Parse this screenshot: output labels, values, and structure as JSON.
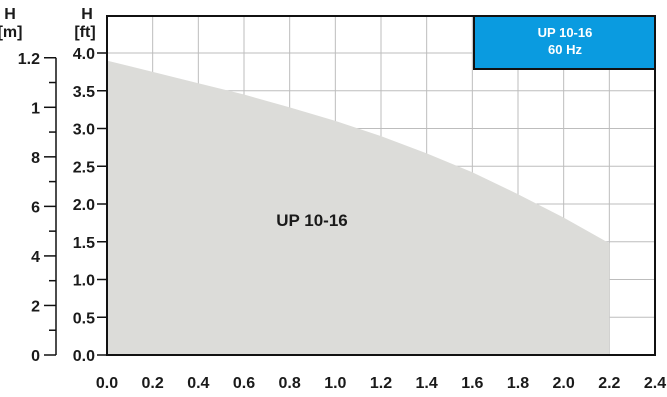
{
  "chart_data": {
    "type": "area",
    "x_ticks": [
      "0.0",
      "0.2",
      "0.4",
      "0.6",
      "0.8",
      "1.0",
      "1.2",
      "1.4",
      "1.6",
      "1.8",
      "2.0",
      "2.2",
      "2.4"
    ],
    "xlim": [
      0,
      2.4
    ],
    "ylim_ft": [
      0,
      4.0
    ],
    "ft_ticks": [
      "0.0",
      "0.5",
      "1.0",
      "1.5",
      "2.0",
      "2.5",
      "3.0",
      "3.5",
      "4.0"
    ],
    "m_ticks": [
      {
        "value": 0,
        "label": "0"
      },
      {
        "value": 0.2,
        "label": "2"
      },
      {
        "value": 0.4,
        "label": "4"
      },
      {
        "value": 0.6,
        "label": "6"
      },
      {
        "value": 0.8,
        "label": "8"
      },
      {
        "value": 1.0,
        "label": "1"
      },
      {
        "value": 1.2,
        "label": "1.2"
      }
    ],
    "m_minor_ticks": [
      0.1,
      0.3,
      0.5,
      0.7,
      0.9,
      1.1
    ],
    "axis_titles": {
      "left_m": {
        "symbol": "H",
        "unit": "[m]"
      },
      "left_ft": {
        "symbol": "H",
        "unit": "[ft]"
      }
    },
    "series": [
      {
        "name": "UP 10-16",
        "x": [
          0.0,
          0.2,
          0.4,
          0.6,
          0.8,
          1.0,
          1.2,
          1.4,
          1.6,
          1.8,
          2.0,
          2.2
        ],
        "y_ft": [
          3.9,
          3.75,
          3.6,
          3.45,
          3.28,
          3.1,
          2.9,
          2.67,
          2.42,
          2.13,
          1.82,
          1.48
        ]
      }
    ],
    "badge": {
      "line1": "UP 10-16",
      "line2": "60 Hz"
    },
    "curve_label": "UP 10-16",
    "grid": true,
    "colors": {
      "fill": "#dcdcd9",
      "badge": "#0a9be0",
      "grid": "#bdbdbd",
      "axis": "#111111"
    }
  }
}
